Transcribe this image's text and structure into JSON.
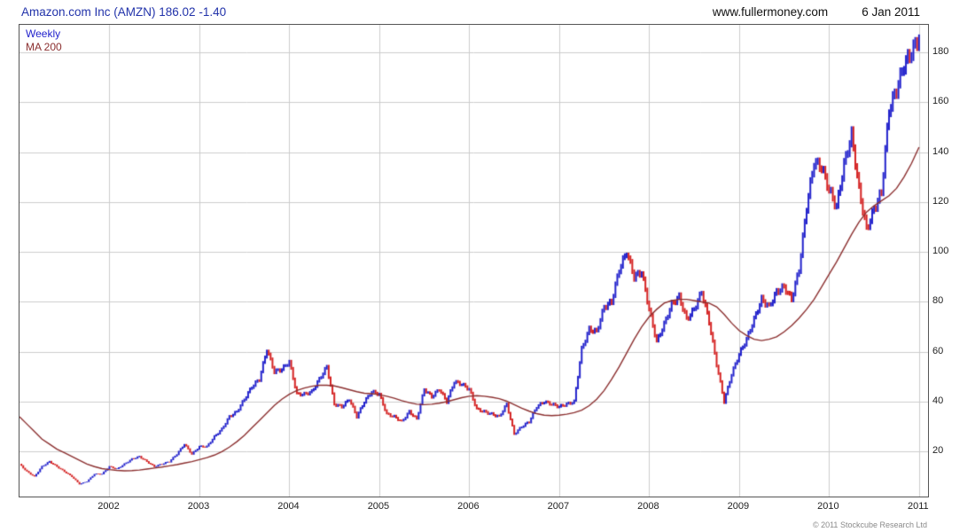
{
  "header": {
    "title": "Amazon.com Inc (AMZN) 186.02 -1.40",
    "title_color": "#2233aa",
    "site": "www.fullermoney.com",
    "date": "6 Jan 2011"
  },
  "legend": {
    "weekly": "Weekly",
    "ma": "MA 200"
  },
  "footer": {
    "copyright": "© 2011 Stockcube Research Ltd"
  },
  "chart_data": {
    "type": "line",
    "title": "Amazon.com Inc (AMZN) weekly price with 200-day moving average",
    "x_unit": "monthly samples from Jan 2001 to Jan 2011",
    "x_start_year": 2001,
    "points_per_year": 12,
    "xlim": [
      2001.0,
      2011.1
    ],
    "ylim": [
      2,
      191
    ],
    "y_ticks": [
      20,
      40,
      60,
      80,
      100,
      120,
      140,
      160,
      180
    ],
    "x_year_labels": [
      "2002",
      "2003",
      "2004",
      "2005",
      "2006",
      "2007",
      "2008",
      "2009",
      "2010",
      "2011"
    ],
    "grid": true,
    "legend_position": "top-left",
    "last_price": 186.02,
    "change": -1.4,
    "colors": {
      "up": "#2222cc",
      "down": "#d42222",
      "ma": "#8b2f2f",
      "grid": "#cccccc",
      "border": "#555555"
    },
    "series": [
      {
        "name": "Weekly",
        "render": "weekly-bars",
        "values": [
          15,
          12,
          10,
          14,
          16,
          14,
          12,
          10,
          7,
          8,
          11,
          11,
          14,
          13,
          15,
          17,
          18,
          16,
          14,
          15,
          16,
          19,
          23,
          19,
          22,
          22,
          26,
          29,
          34,
          36,
          41,
          46,
          49,
          61,
          52,
          53,
          56,
          43,
          43,
          44,
          49,
          54,
          39,
          38,
          41,
          34,
          40,
          44,
          43,
          35,
          34,
          32,
          36,
          33,
          45,
          42,
          45,
          40,
          48,
          47,
          45,
          37,
          36,
          35,
          34,
          39,
          27,
          30,
          32,
          38,
          40,
          39,
          38,
          39,
          40,
          61,
          69,
          68,
          78,
          80,
          93,
          100,
          90,
          92,
          77,
          64,
          71,
          79,
          82,
          73,
          77,
          84,
          72,
          55,
          40,
          51,
          59,
          65,
          73,
          81,
          78,
          84,
          86,
          81,
          93,
          118,
          136,
          134,
          125,
          118,
          135,
          147,
          125,
          109,
          117,
          124,
          157,
          165,
          175,
          180,
          186
        ]
      },
      {
        "name": "MA 200",
        "render": "line",
        "values": [
          34,
          31,
          28,
          25,
          23,
          21,
          19.5,
          18,
          16.5,
          15,
          14,
          13.2,
          12.8,
          12.5,
          12.3,
          12.4,
          12.6,
          13,
          13.4,
          13.8,
          14.3,
          14.8,
          15.4,
          16,
          16.8,
          17.6,
          18.6,
          20,
          21.8,
          24,
          26.5,
          29.5,
          32.5,
          35.5,
          38.5,
          41,
          43,
          44.5,
          45.5,
          46.2,
          46.6,
          46.6,
          46.3,
          45.6,
          44.8,
          44,
          43.4,
          43.2,
          42.8,
          42.2,
          41.4,
          40.4,
          39.6,
          39,
          38.8,
          39,
          39.4,
          40,
          40.8,
          41.6,
          42.2,
          42.4,
          42.2,
          41.8,
          41.2,
          40.2,
          38.8,
          37.4,
          36.2,
          35.2,
          34.6,
          34.4,
          34.6,
          35,
          35.6,
          36.6,
          38.4,
          41,
          44.5,
          49,
          54,
          59.5,
          65,
          70,
          74,
          77,
          79.5,
          80.5,
          81,
          81,
          80.5,
          80,
          79.5,
          78,
          75,
          71.5,
          68.5,
          66.5,
          65,
          64.5,
          65,
          66,
          68,
          70.5,
          73.5,
          77,
          81,
          86,
          91,
          96,
          101.5,
          107,
          112,
          116,
          118.5,
          120.5,
          122.5,
          125.5,
          130,
          135.5,
          142
        ]
      }
    ]
  }
}
